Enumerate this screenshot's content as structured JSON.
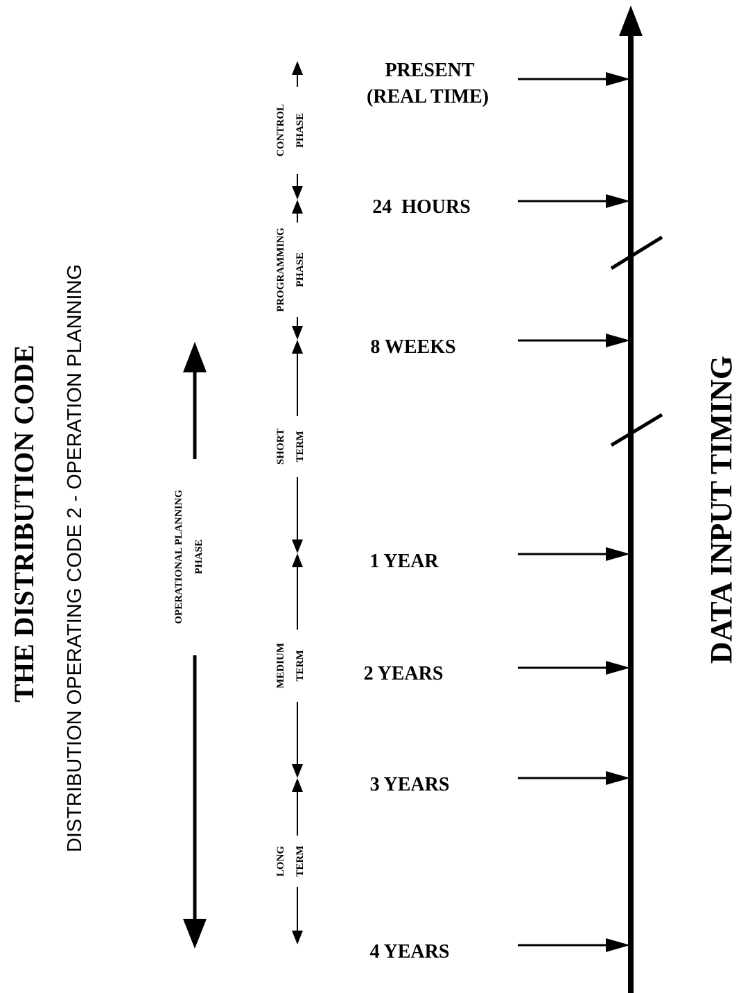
{
  "title": "THE DISTRIBUTION CODE",
  "subtitle": "DISTRIBUTION OPERATING CODE 2 - OPERATION PLANNING",
  "axis_title": "DATA INPUT TIMING",
  "overall_phase": {
    "line1": "OPERATIONAL PLANNING",
    "line2": "PHASE"
  },
  "timepoints": [
    {
      "label": "PRESENT",
      "label2": "(REAL TIME)"
    },
    {
      "label": "24  HOURS"
    },
    {
      "label": "8 WEEKS"
    },
    {
      "label": "1 YEAR"
    },
    {
      "label": "2 YEARS"
    },
    {
      "label": "3 YEARS"
    },
    {
      "label": "4 YEARS"
    }
  ],
  "phases": [
    {
      "line1": "CONTROL",
      "line2": "PHASE"
    },
    {
      "line1": "PROGRAMMING",
      "line2": "PHASE"
    },
    {
      "line1": "SHORT",
      "line2": "TERM"
    },
    {
      "line1": "MEDIUM",
      "line2": "TERM"
    },
    {
      "line1": "LONG",
      "line2": "TERM"
    }
  ]
}
